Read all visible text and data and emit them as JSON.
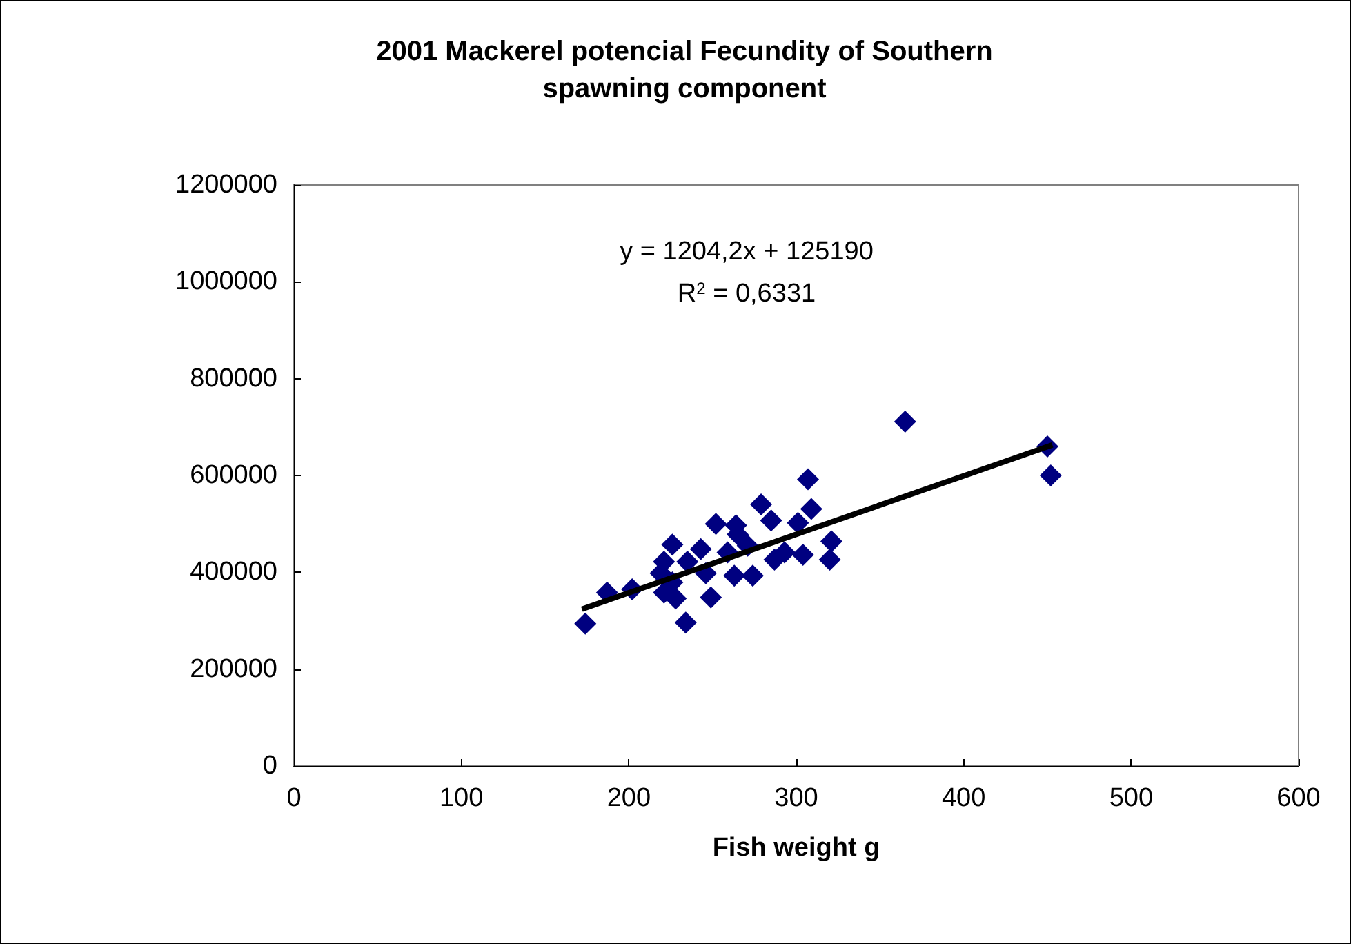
{
  "chart_data": {
    "type": "scatter",
    "title": "2001 Mackerel potencial Fecundity of Southern\nspawning component",
    "xlabel": "Fish weight g",
    "annotations": [
      "y = 1204,2x + 125190",
      "R$^{2}$ = 0,6331"
    ],
    "marker": "diamond",
    "grid": false,
    "xlim": [
      0,
      600
    ],
    "xticks": [
      0,
      100,
      200,
      300,
      400,
      500,
      600
    ],
    "ylim": [
      0,
      1200000
    ],
    "yticks": [
      0,
      200000,
      400000,
      600000,
      800000,
      1000000,
      1200000
    ],
    "series": [
      {
        "color": "#000080",
        "x": [
          174,
          187,
          202,
          234,
          249,
          226,
          221,
          219,
          221,
          228,
          226,
          235,
          243,
          246,
          252,
          264,
          265,
          259,
          263,
          274,
          271,
          279,
          285,
          287,
          293,
          301,
          304,
          309,
          307,
          321,
          320,
          365,
          450,
          452
        ],
        "values": [
          294000,
          358000,
          365000,
          296000,
          348000,
          457000,
          422000,
          398000,
          358000,
          346000,
          379000,
          422000,
          448000,
          398000,
          500000,
          497000,
          478000,
          441000,
          393000,
          393000,
          455000,
          540000,
          507000,
          426000,
          441000,
          502000,
          436000,
          531000,
          592000,
          464000,
          426000,
          711000,
          660000,
          600000
        ]
      },
      {
        "type": "line",
        "color": "#000000",
        "marker": "none",
        "x": [
          172,
          453
        ],
        "values": [
          324000,
          663000
        ]
      }
    ]
  }
}
